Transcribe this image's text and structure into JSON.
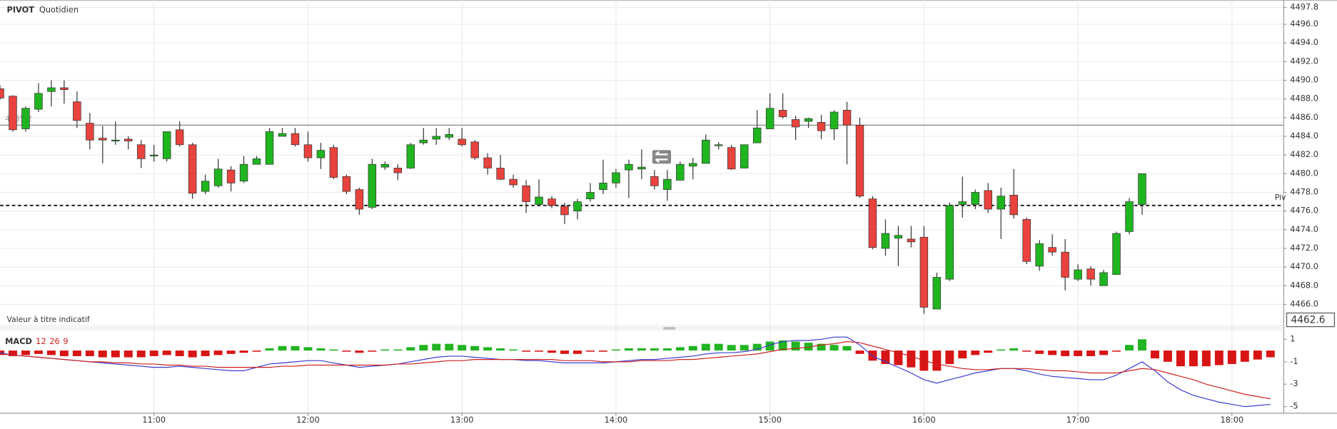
{
  "header": {
    "symbol": "PIVOT",
    "period": "Quotidien"
  },
  "note": "Valeur à titre indicatif",
  "chart_data": [
    {
      "type": "candlestick",
      "x": [
        "10:00",
        "10:05",
        "10:10",
        "10:15",
        "10:20",
        "10:25",
        "10:30",
        "10:35",
        "10:40",
        "10:45",
        "10:50",
        "10:55",
        "11:00",
        "11:05",
        "11:10",
        "11:15",
        "11:20",
        "11:25",
        "11:30",
        "11:35",
        "11:40",
        "11:45",
        "11:50",
        "11:55",
        "12:00",
        "12:05",
        "12:10",
        "12:15",
        "12:20",
        "12:25",
        "12:30",
        "12:35",
        "12:40",
        "12:45",
        "12:50",
        "12:55",
        "13:00",
        "13:05",
        "13:10",
        "13:15",
        "13:20",
        "13:25",
        "13:30",
        "13:35",
        "13:40",
        "13:45",
        "13:50",
        "13:55",
        "14:00",
        "14:05",
        "14:10",
        "14:15",
        "14:20",
        "14:25",
        "14:30",
        "14:35",
        "14:40",
        "14:45",
        "14:50",
        "14:55",
        "15:00",
        "15:05",
        "15:10",
        "15:15",
        "15:20",
        "15:25",
        "15:30",
        "15:35",
        "15:40",
        "15:45",
        "15:50",
        "15:55",
        "16:00",
        "16:05",
        "16:10",
        "16:15",
        "16:20",
        "16:25",
        "16:30",
        "16:35",
        "16:40",
        "16:45",
        "16:50",
        "16:55",
        "17:00",
        "17:05",
        "17:10",
        "17:15",
        "17:20",
        "17:25"
      ],
      "open": [
        4489.1,
        4488.3,
        4484.8,
        4486.9,
        4488.8,
        4489.2,
        4487.7,
        4485.4,
        4483.8,
        4483.5,
        4483.7,
        4483.1,
        4481.9,
        4481.6,
        4484.7,
        4483.1,
        4478.1,
        4478.7,
        4480.4,
        4479.2,
        4481.0,
        4481.0,
        4484.0,
        4484.3,
        4483.1,
        4481.7,
        4482.8,
        4479.7,
        4478.3,
        4476.4,
        4480.7,
        4480.6,
        4480.6,
        4483.3,
        4483.7,
        4483.9,
        4483.7,
        4483.4,
        4481.7,
        4480.6,
        4479.4,
        4478.7,
        4476.7,
        4477.3,
        4476.5,
        4476.0,
        4477.3,
        4478.3,
        4479.0,
        4480.4,
        4480.5,
        4479.7,
        4478.3,
        4479.3,
        4480.8,
        4481.1,
        4483.0,
        4482.8,
        4480.6,
        4483.3,
        4484.8,
        4486.8,
        4485.8,
        4485.6,
        4485.5,
        4484.8,
        4486.8,
        4485.2,
        4477.3,
        4472.0,
        4473.1,
        4473.0,
        4473.2,
        4465.5,
        4468.7,
        4476.7,
        4476.7,
        4478.2,
        4476.2,
        4477.7,
        4475.1,
        4470.1,
        4472.1,
        4471.6,
        4468.7,
        4469.8,
        4468.0,
        4469.2,
        4473.8,
        4476.7
      ],
      "high": [
        4489.5,
        4488.4,
        4487.2,
        4489.7,
        4490.0,
        4490.0,
        4488.8,
        4486.5,
        4485.1,
        4485.6,
        4484.0,
        4483.6,
        4483.1,
        4484.5,
        4485.6,
        4483.3,
        4479.9,
        4481.6,
        4480.8,
        4481.9,
        4481.9,
        4484.9,
        4484.9,
        4484.9,
        4484.5,
        4483.3,
        4483.1,
        4479.9,
        4478.5,
        4481.6,
        4481.3,
        4481.0,
        4483.3,
        4484.9,
        4484.9,
        4484.9,
        4484.9,
        4483.6,
        4482.2,
        4482.0,
        4479.9,
        4479.3,
        4479.4,
        4477.6,
        4476.9,
        4477.3,
        4479.0,
        4481.5,
        4480.5,
        4481.5,
        4482.6,
        4480.4,
        4480.4,
        4481.3,
        4481.7,
        4484.2,
        4483.4,
        4483.1,
        4483.1,
        4486.8,
        4488.6,
        4488.6,
        4486.2,
        4486.0,
        4486.3,
        4486.8,
        4487.7,
        4486.0,
        4477.6,
        4475.1,
        4474.4,
        4474.4,
        4474.4,
        4469.4,
        4476.9,
        4479.7,
        4478.3,
        4479.0,
        4478.5,
        4480.5,
        4475.3,
        4472.9,
        4473.5,
        4473.0,
        4470.3,
        4470.1,
        4469.7,
        4473.8,
        4477.4,
        4480.0
      ],
      "low": [
        4487.9,
        4484.5,
        4484.5,
        4486.6,
        4487.2,
        4487.5,
        4484.9,
        4482.6,
        4481.1,
        4483.1,
        4482.6,
        4480.6,
        4481.3,
        4481.3,
        4482.9,
        4477.3,
        4477.8,
        4478.5,
        4478.1,
        4479.0,
        4481.0,
        4481.0,
        4484.0,
        4482.9,
        4481.3,
        4480.5,
        4479.4,
        4477.8,
        4475.6,
        4476.2,
        4480.4,
        4479.3,
        4480.5,
        4483.1,
        4483.1,
        4483.6,
        4482.9,
        4481.5,
        4479.9,
        4479.3,
        4478.5,
        4475.8,
        4476.5,
        4476.3,
        4474.6,
        4475.1,
        4477.0,
        4477.8,
        4478.5,
        4477.4,
        4479.4,
        4478.3,
        4477.1,
        4479.3,
        4479.4,
        4481.1,
        4482.6,
        4480.4,
        4480.6,
        4483.3,
        4484.8,
        4485.9,
        4483.6,
        4484.9,
        4483.7,
        4483.6,
        4481.0,
        4477.4,
        4471.9,
        4471.2,
        4470.1,
        4472.1,
        4465.0,
        4465.5,
        4468.5,
        4475.3,
        4476.2,
        4475.8,
        4473.0,
        4475.2,
        4470.3,
        4469.6,
        4471.2,
        4467.5,
        4468.5,
        4468.0,
        4468.0,
        4469.2,
        4473.5,
        4475.6
      ],
      "close": [
        4488.1,
        4484.7,
        4487.0,
        4488.6,
        4489.2,
        4489.0,
        4485.7,
        4483.6,
        4483.6,
        4483.6,
        4483.5,
        4481.6,
        4482.0,
        4484.5,
        4483.1,
        4477.9,
        4479.2,
        4480.5,
        4479.0,
        4481.0,
        4481.6,
        4484.5,
        4484.3,
        4483.1,
        4481.7,
        4482.5,
        4479.6,
        4478.1,
        4476.2,
        4481.0,
        4481.0,
        4480.1,
        4483.1,
        4483.6,
        4484.0,
        4484.2,
        4483.1,
        4481.7,
        4480.6,
        4479.4,
        4478.8,
        4477.0,
        4477.5,
        4476.6,
        4475.6,
        4477.0,
        4478.0,
        4479.0,
        4480.1,
        4481.0,
        4480.7,
        4478.7,
        4479.4,
        4481.0,
        4481.1,
        4483.6,
        4483.1,
        4480.5,
        4483.1,
        4484.9,
        4487.0,
        4486.1,
        4485.0,
        4485.9,
        4484.6,
        4486.6,
        4485.2,
        4477.6,
        4472.1,
        4473.6,
        4473.4,
        4472.7,
        4465.7,
        4468.9,
        4476.6,
        4477.0,
        4478.0,
        4476.2,
        4477.6,
        4475.6,
        4470.6,
        4472.5,
        4471.6,
        4468.9,
        4469.7,
        4468.7,
        4469.4,
        4473.6,
        4477.0,
        4480.0
      ],
      "up_color": "#1fb51f",
      "down_color": "#e8433e",
      "xlim": [
        "10:00",
        "18:20"
      ],
      "xticks": [
        "11:00",
        "12:00",
        "13:00",
        "14:00",
        "15:00",
        "16:00",
        "17:00",
        "18:00"
      ],
      "ylim": [
        4463.8,
        4498.6
      ],
      "yticks": [
        {
          "value": 4466,
          "label": "4466.0"
        },
        {
          "value": 4468,
          "label": "4468.0"
        },
        {
          "value": 4470,
          "label": "4470.0"
        },
        {
          "value": 4472,
          "label": "4472.0"
        },
        {
          "value": 4474,
          "label": "4474.0"
        },
        {
          "value": 4476,
          "label": "4476.0"
        },
        {
          "value": 4478,
          "label": "4478.0"
        },
        {
          "value": 4480,
          "label": "4480.0"
        },
        {
          "value": 4482,
          "label": "4482.0"
        },
        {
          "value": 4484,
          "label": "4484.0"
        },
        {
          "value": 4486,
          "label": "4486.0"
        },
        {
          "value": 4488,
          "label": "4488.0"
        },
        {
          "value": 4490,
          "label": "4490.0"
        },
        {
          "value": 4492,
          "label": "4492.0"
        },
        {
          "value": 4494,
          "label": "4494.0"
        },
        {
          "value": 4496,
          "label": "4496.0"
        },
        4497.8
      ],
      "grid": true,
      "levels": [
        {
          "name": "Piv",
          "value": 4476.6,
          "dashed": true
        },
        {
          "value": 4485.2,
          "dashed": false
        }
      ],
      "cursor_value": 4462.6
    },
    {
      "type": "macd",
      "title": "MACD",
      "params": [
        12,
        26,
        9
      ],
      "x": [
        "10:00",
        "10:05",
        "10:10",
        "10:15",
        "10:20",
        "10:25",
        "10:30",
        "10:35",
        "10:40",
        "10:45",
        "10:50",
        "10:55",
        "11:00",
        "11:05",
        "11:10",
        "11:15",
        "11:20",
        "11:25",
        "11:30",
        "11:35",
        "11:40",
        "11:45",
        "11:50",
        "11:55",
        "12:00",
        "12:05",
        "12:10",
        "12:15",
        "12:20",
        "12:25",
        "12:30",
        "12:35",
        "12:40",
        "12:45",
        "12:50",
        "12:55",
        "13:00",
        "13:05",
        "13:10",
        "13:15",
        "13:20",
        "13:25",
        "13:30",
        "13:35",
        "13:40",
        "13:45",
        "13:50",
        "13:55",
        "14:00",
        "14:05",
        "14:10",
        "14:15",
        "14:20",
        "14:25",
        "14:30",
        "14:35",
        "14:40",
        "14:45",
        "14:50",
        "14:55",
        "15:00",
        "15:05",
        "15:10",
        "15:15",
        "15:20",
        "15:25",
        "15:30",
        "15:35",
        "15:40",
        "15:45",
        "15:50",
        "15:55",
        "16:00",
        "16:05",
        "16:10",
        "16:15",
        "16:20",
        "16:25",
        "16:30",
        "16:35",
        "16:40",
        "16:45",
        "16:50",
        "16:55",
        "17:00",
        "17:05",
        "17:10",
        "17:15",
        "17:20",
        "17:25",
        "17:30",
        "17:35",
        "17:40",
        "17:45",
        "17:50",
        "17:55",
        "18:00",
        "18:05",
        "18:10",
        "18:15"
      ],
      "histogram": {
        "up_color": "#22b422",
        "down_color": "#d81414",
        "values": [
          -0.4,
          -0.5,
          -0.4,
          -0.3,
          -0.4,
          -0.5,
          -0.5,
          -0.5,
          -0.6,
          -0.6,
          -0.6,
          -0.6,
          -0.5,
          -0.4,
          -0.5,
          -0.6,
          -0.5,
          -0.4,
          -0.3,
          -0.2,
          -0.1,
          0.2,
          0.4,
          0.4,
          0.3,
          0.2,
          0.1,
          -0.1,
          -0.2,
          -0.1,
          0.1,
          0.1,
          0.3,
          0.5,
          0.6,
          0.6,
          0.5,
          0.4,
          0.3,
          0.2,
          0.1,
          -0.1,
          -0.1,
          -0.2,
          -0.3,
          -0.3,
          -0.1,
          -0.1,
          0.1,
          0.2,
          0.2,
          0.2,
          0.2,
          0.3,
          0.4,
          0.6,
          0.6,
          0.5,
          0.5,
          0.6,
          0.8,
          0.9,
          0.8,
          0.7,
          0.6,
          0.5,
          0.4,
          -0.3,
          -0.9,
          -1.2,
          -1.3,
          -1.5,
          -1.8,
          -1.8,
          -1.2,
          -0.7,
          -0.4,
          -0.2,
          0.1,
          0.2,
          -0.1,
          -0.3,
          -0.4,
          -0.5,
          -0.5,
          -0.5,
          -0.4,
          -0.1,
          0.5,
          1.0,
          -0.7,
          -1.0,
          -1.4,
          -1.4,
          -1.4,
          -1.3,
          -1.2,
          -1.0,
          -0.8,
          -0.6
        ]
      },
      "series": [
        {
          "color": "#3c3cd2",
          "values": [
            -0.2,
            -0.4,
            -0.5,
            -0.6,
            -0.7,
            -0.8,
            -0.9,
            -1.0,
            -1.1,
            -1.2,
            -1.3,
            -1.4,
            -1.5,
            -1.5,
            -1.4,
            -1.5,
            -1.6,
            -1.7,
            -1.8,
            -1.8,
            -1.5,
            -1.2,
            -1.1,
            -1.0,
            -0.9,
            -0.9,
            -1.1,
            -1.3,
            -1.5,
            -1.4,
            -1.3,
            -1.2,
            -1.0,
            -0.8,
            -0.6,
            -0.5,
            -0.5,
            -0.6,
            -0.7,
            -0.8,
            -0.8,
            -0.9,
            -0.9,
            -1.0,
            -1.1,
            -1.1,
            -1.1,
            -1.1,
            -1.0,
            -0.9,
            -0.8,
            -0.8,
            -0.7,
            -0.6,
            -0.5,
            -0.3,
            -0.2,
            -0.2,
            -0.1,
            0.1,
            0.5,
            0.8,
            0.9,
            0.9,
            1.0,
            1.2,
            1.2,
            0.5,
            -0.5,
            -1.0,
            -1.5,
            -2.0,
            -2.6,
            -2.9,
            -2.6,
            -2.3,
            -2.0,
            -1.8,
            -1.6,
            -1.6,
            -1.8,
            -2.1,
            -2.3,
            -2.4,
            -2.5,
            -2.6,
            -2.6,
            -2.2,
            -1.6,
            -1.0,
            -1.8,
            -2.8,
            -3.5,
            -4.0,
            -4.3,
            -4.6,
            -4.8,
            -5.0,
            -4.9,
            -4.8
          ]
        },
        {
          "color": "#cc2222",
          "values": [
            -0.3,
            -0.4,
            -0.5,
            -0.6,
            -0.7,
            -0.8,
            -0.9,
            -1.0,
            -1.0,
            -1.1,
            -1.1,
            -1.2,
            -1.2,
            -1.3,
            -1.3,
            -1.4,
            -1.4,
            -1.5,
            -1.5,
            -1.5,
            -1.5,
            -1.5,
            -1.4,
            -1.4,
            -1.3,
            -1.3,
            -1.3,
            -1.3,
            -1.3,
            -1.3,
            -1.3,
            -1.2,
            -1.2,
            -1.1,
            -1.0,
            -0.9,
            -0.9,
            -0.8,
            -0.8,
            -0.8,
            -0.8,
            -0.8,
            -0.8,
            -0.8,
            -0.9,
            -0.9,
            -0.9,
            -1.0,
            -1.0,
            -1.0,
            -0.9,
            -0.9,
            -0.9,
            -0.8,
            -0.8,
            -0.7,
            -0.6,
            -0.5,
            -0.4,
            -0.3,
            -0.1,
            0.1,
            0.2,
            0.3,
            0.5,
            0.6,
            0.8,
            0.7,
            0.4,
            0.1,
            -0.2,
            -0.5,
            -0.9,
            -1.2,
            -1.4,
            -1.6,
            -1.7,
            -1.7,
            -1.6,
            -1.6,
            -1.6,
            -1.7,
            -1.8,
            -1.8,
            -1.9,
            -2.0,
            -2.0,
            -2.0,
            -1.8,
            -1.6,
            -1.7,
            -2.0,
            -2.3,
            -2.6,
            -3.0,
            -3.3,
            -3.6,
            -3.9,
            -4.1,
            -4.3
          ]
        }
      ],
      "xlim": [
        "10:00",
        "18:20"
      ],
      "ylim": [
        -5.55,
        1.75
      ],
      "yticks": [
        1,
        -1,
        -3,
        -5
      ]
    }
  ]
}
